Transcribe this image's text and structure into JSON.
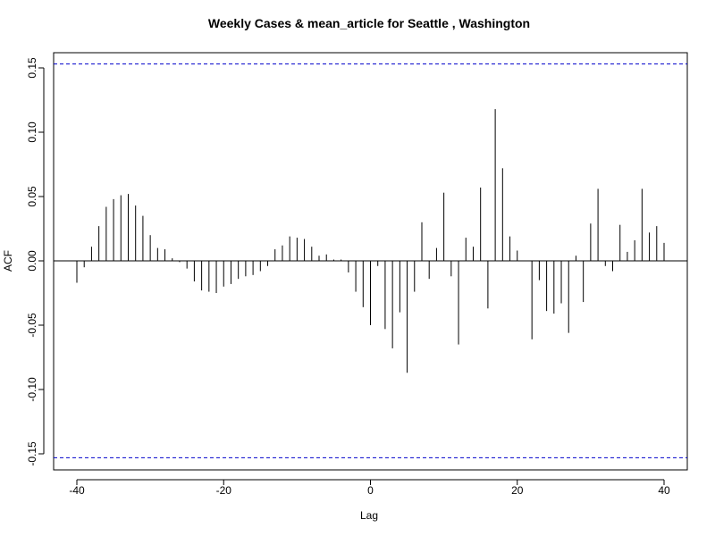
{
  "chart_data": {
    "type": "bar",
    "title": "Weekly Cases & mean_article for Seattle , Washington",
    "xlabel": "Lag",
    "ylabel": "ACF",
    "xlim": [
      -40,
      40
    ],
    "ylim": [
      -0.15,
      0.15
    ],
    "xticks": [
      -40,
      -20,
      0,
      20,
      40
    ],
    "xtick_labels": [
      "-40",
      "-20",
      "0",
      "20",
      "40"
    ],
    "yticks": [
      -0.15,
      -0.1,
      -0.05,
      0.0,
      0.05,
      0.1,
      0.15
    ],
    "ytick_labels": [
      "-0.15",
      "-0.10",
      "-0.05",
      "0.00",
      "0.05",
      "0.10",
      "0.15"
    ],
    "confidence_band": [
      -0.153,
      0.153
    ],
    "colors": {
      "bars": "#000000",
      "band": "#0000cc",
      "zero_line": "#000000",
      "axes": "#000000"
    },
    "grid": false,
    "lags": [
      -40,
      -39,
      -38,
      -37,
      -36,
      -35,
      -34,
      -33,
      -32,
      -31,
      -30,
      -29,
      -28,
      -27,
      -26,
      -25,
      -24,
      -23,
      -22,
      -21,
      -20,
      -19,
      -18,
      -17,
      -16,
      -15,
      -14,
      -13,
      -12,
      -11,
      -10,
      -9,
      -8,
      -7,
      -6,
      -5,
      -4,
      -3,
      -2,
      -1,
      0,
      1,
      2,
      3,
      4,
      5,
      6,
      7,
      8,
      9,
      10,
      11,
      12,
      13,
      14,
      15,
      16,
      17,
      18,
      19,
      20,
      21,
      22,
      23,
      24,
      25,
      26,
      27,
      28,
      29,
      30,
      31,
      32,
      33,
      34,
      35,
      36,
      37,
      38,
      39,
      40
    ],
    "values": [
      -0.017,
      -0.005,
      0.011,
      0.027,
      0.042,
      0.048,
      0.051,
      0.052,
      0.043,
      0.035,
      0.02,
      0.01,
      0.009,
      0.002,
      -0.001,
      -0.006,
      -0.016,
      -0.023,
      -0.024,
      -0.025,
      -0.02,
      -0.018,
      -0.014,
      -0.012,
      -0.011,
      -0.008,
      -0.004,
      0.009,
      0.012,
      0.019,
      0.018,
      0.017,
      0.011,
      0.004,
      0.005,
      0.001,
      0.001,
      -0.009,
      -0.024,
      -0.036,
      -0.05,
      -0.004,
      -0.053,
      -0.068,
      -0.04,
      -0.087,
      -0.024,
      0.03,
      -0.014,
      0.01,
      0.053,
      -0.012,
      -0.065,
      0.018,
      0.011,
      0.057,
      -0.037,
      0.118,
      0.072,
      0.019,
      0.008,
      0.0,
      -0.061,
      -0.015,
      -0.039,
      -0.041,
      -0.033,
      -0.056,
      0.004,
      -0.032,
      0.029,
      0.056,
      -0.004,
      -0.008,
      0.028,
      0.007,
      0.016,
      0.056,
      0.022,
      0.027,
      0.014
    ]
  }
}
